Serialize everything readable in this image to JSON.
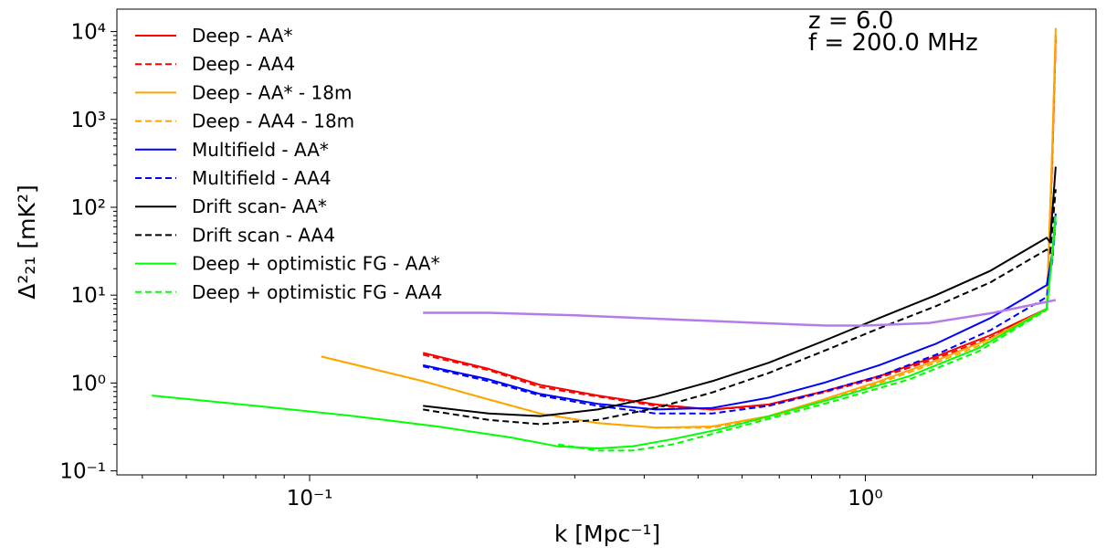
{
  "chart_data": {
    "type": "line",
    "xscale": "log",
    "yscale": "log",
    "xlim": [
      0.045,
      2.6
    ],
    "ylim": [
      0.09,
      18000
    ],
    "xlabel": "k [Mpc⁻¹]",
    "ylabel": "Δ²₂₁ [mK²]",
    "annotations": [
      "z = 6.0",
      "f = 200.0 MHz"
    ],
    "legend_position": "upper left",
    "x_ticks": [
      {
        "value": 0.1,
        "label": "10⁻¹"
      },
      {
        "value": 1,
        "label": "10⁰"
      }
    ],
    "y_ticks": [
      {
        "value": 0.1,
        "label": "10⁻¹"
      },
      {
        "value": 1,
        "label": "10⁰"
      },
      {
        "value": 10,
        "label": "10¹"
      },
      {
        "value": 100,
        "label": "10²"
      },
      {
        "value": 1000,
        "label": "10³"
      },
      {
        "value": 10000,
        "label": "10⁴"
      }
    ],
    "series": [
      {
        "name": "Deep - AA*",
        "color": "#ff0000",
        "dash": "solid",
        "x": [
          0.16,
          0.21,
          0.26,
          0.33,
          0.42,
          0.53,
          0.67,
          0.84,
          1.06,
          1.34,
          1.68,
          2.12,
          2.17,
          2.2
        ],
        "y": [
          2.2,
          1.45,
          0.95,
          0.72,
          0.57,
          0.5,
          0.57,
          0.8,
          1.2,
          2.0,
          3.5,
          7.0,
          400,
          9000
        ]
      },
      {
        "name": "Deep - AA4",
        "color": "#ff0000",
        "dash": "dashed",
        "x": [
          0.16,
          0.21,
          0.26,
          0.33,
          0.42,
          0.53,
          0.67,
          0.84,
          1.06,
          1.34,
          1.68,
          2.12,
          2.17,
          2.2
        ],
        "y": [
          2.1,
          1.4,
          0.9,
          0.7,
          0.55,
          0.5,
          0.55,
          0.78,
          1.15,
          1.9,
          3.3,
          6.8,
          350,
          8000
        ]
      },
      {
        "name": "Deep - AA* - 18m",
        "color": "#ffa500",
        "dash": "solid",
        "x": [
          0.105,
          0.16,
          0.21,
          0.26,
          0.33,
          0.42,
          0.53,
          0.67,
          0.84,
          1.06,
          1.34,
          1.68,
          2.12,
          2.17,
          2.2
        ],
        "y": [
          2.0,
          1.05,
          0.65,
          0.45,
          0.35,
          0.31,
          0.32,
          0.42,
          0.65,
          1.05,
          1.8,
          3.2,
          7.0,
          500,
          11000
        ]
      },
      {
        "name": "Deep - AA4 - 18m",
        "color": "#ffa500",
        "dash": "dashed",
        "x": [
          0.105,
          0.16,
          0.21,
          0.26,
          0.33,
          0.42,
          0.53,
          0.67,
          0.84,
          1.06,
          1.34,
          1.68,
          2.12,
          2.17,
          2.2
        ],
        "y": [
          2.0,
          1.05,
          0.65,
          0.45,
          0.35,
          0.31,
          0.31,
          0.4,
          0.62,
          1.0,
          1.7,
          3.0,
          6.8,
          450,
          10000
        ]
      },
      {
        "name": "Multifield - AA*",
        "color": "#0000ff",
        "dash": "solid",
        "x": [
          0.16,
          0.21,
          0.26,
          0.33,
          0.42,
          0.53,
          0.67,
          0.84,
          1.06,
          1.34,
          1.68,
          2.12,
          2.17,
          2.2
        ],
        "y": [
          1.6,
          1.1,
          0.75,
          0.58,
          0.5,
          0.52,
          0.68,
          1.0,
          1.6,
          2.8,
          5.5,
          13,
          30,
          85
        ]
      },
      {
        "name": "Multifield - AA4",
        "color": "#0000ff",
        "dash": "dashed",
        "x": [
          0.16,
          0.21,
          0.26,
          0.33,
          0.42,
          0.53,
          0.67,
          0.84,
          1.06,
          1.34,
          1.68,
          2.12,
          2.17,
          2.2
        ],
        "y": [
          1.55,
          1.05,
          0.72,
          0.55,
          0.45,
          0.45,
          0.55,
          0.8,
          1.2,
          2.1,
          4.0,
          9.5,
          25,
          70
        ]
      },
      {
        "name": "Drift scan- AA*",
        "color": "#000000",
        "dash": "solid",
        "x": [
          0.16,
          0.21,
          0.26,
          0.33,
          0.42,
          0.53,
          0.67,
          0.84,
          1.06,
          1.34,
          1.68,
          2.12,
          2.15,
          2.2
        ],
        "y": [
          0.55,
          0.45,
          0.42,
          0.5,
          0.7,
          1.05,
          1.7,
          3.0,
          5.5,
          10,
          19,
          45,
          40,
          290
        ]
      },
      {
        "name": "Drift scan - AA4",
        "color": "#000000",
        "dash": "dashed",
        "x": [
          0.16,
          0.21,
          0.26,
          0.33,
          0.42,
          0.53,
          0.67,
          0.84,
          1.06,
          1.34,
          1.68,
          2.12,
          2.15,
          2.2
        ],
        "y": [
          0.5,
          0.38,
          0.34,
          0.38,
          0.52,
          0.78,
          1.3,
          2.3,
          4.2,
          7.5,
          14,
          33,
          30,
          160
        ]
      },
      {
        "name": "Deep + optimistic FG - AA*",
        "color": "#00ff00",
        "dash": "solid",
        "x": [
          0.052,
          0.08,
          0.12,
          0.17,
          0.23,
          0.28,
          0.33,
          0.38,
          0.45,
          0.55,
          0.7,
          0.9,
          1.2,
          1.6,
          2.12,
          2.17,
          2.2
        ],
        "y": [
          0.72,
          0.55,
          0.42,
          0.32,
          0.24,
          0.19,
          0.18,
          0.19,
          0.23,
          0.3,
          0.45,
          0.7,
          1.2,
          2.5,
          7.0,
          30,
          80
        ]
      },
      {
        "name": "Deep + optimistic FG - AA4",
        "color": "#00ff00",
        "dash": "dashed",
        "x": [
          0.28,
          0.33,
          0.38,
          0.45,
          0.55,
          0.7,
          0.9,
          1.2,
          1.6,
          2.12,
          2.17,
          2.2
        ],
        "y": [
          0.2,
          0.17,
          0.17,
          0.2,
          0.28,
          0.42,
          0.65,
          1.1,
          2.3,
          6.8,
          28,
          70
        ]
      },
      {
        "name": "",
        "color": "#b57bea",
        "dash": "solid",
        "x": [
          0.16,
          0.21,
          0.3,
          0.45,
          0.65,
          0.85,
          1.0,
          1.3,
          1.7,
          2.2
        ],
        "y": [
          6.3,
          6.3,
          5.9,
          5.3,
          4.8,
          4.5,
          4.5,
          4.8,
          6.3,
          8.8
        ]
      }
    ]
  }
}
